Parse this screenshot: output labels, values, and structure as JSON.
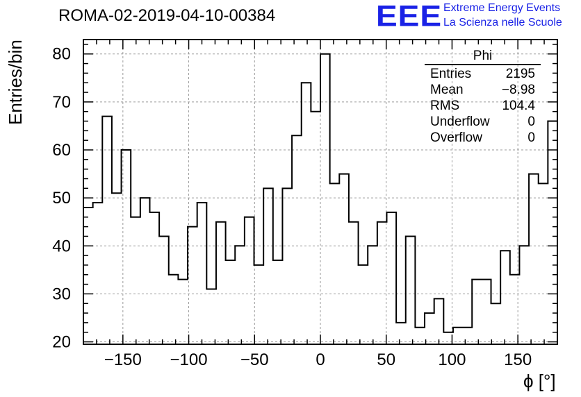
{
  "header": {
    "run_title": "ROMA-02-2019-04-10-00384",
    "logo_text": "EEE",
    "logo_line1": "Extreme Energy Events",
    "logo_line2": "La Scienza nelle Scuole"
  },
  "stats": {
    "title": "Phi",
    "rows": [
      {
        "label": "Entries",
        "value": "2195"
      },
      {
        "label": "Mean",
        "value": "−8.98"
      },
      {
        "label": "RMS",
        "value": "104.4"
      },
      {
        "label": "Underflow",
        "value": "0"
      },
      {
        "label": "Overflow",
        "value": "0"
      }
    ]
  },
  "chart_data": {
    "type": "bar",
    "style": "step-histogram",
    "xlabel": "ϕ [°]",
    "ylabel": "Entries/bin",
    "xlim": [
      -180,
      180
    ],
    "ylim": [
      19.5,
      83
    ],
    "bin_width": 7.2,
    "bin_low_edges": [
      -180,
      -172.8,
      -165.6,
      -158.4,
      -151.2,
      -144,
      -136.8,
      -129.6,
      -122.4,
      -115.2,
      -108,
      -100.8,
      -93.6,
      -86.4,
      -79.2,
      -72,
      -64.8,
      -57.6,
      -50.4,
      -43.2,
      -36,
      -28.8,
      -21.6,
      -14.4,
      -7.2,
      0,
      7.2,
      14.4,
      21.6,
      28.8,
      36,
      43.2,
      50.4,
      57.6,
      64.8,
      72,
      79.2,
      86.4,
      93.6,
      100.8,
      108,
      115.2,
      122.4,
      129.6,
      136.8,
      144,
      151.2,
      158.4,
      165.6,
      172.8
    ],
    "values": [
      48,
      49,
      67,
      51,
      60,
      46,
      50,
      47,
      42,
      34,
      33,
      44,
      49,
      31,
      45,
      37,
      40,
      46,
      36,
      52,
      37,
      52,
      63,
      74,
      68,
      80,
      53,
      55,
      45,
      36,
      40,
      45,
      47,
      24,
      42,
      23,
      26,
      29,
      22,
      23,
      23,
      33,
      33,
      28,
      39,
      34,
      40,
      55,
      53,
      66
    ],
    "x_ticks": [
      -150,
      -100,
      -50,
      0,
      50,
      100,
      150
    ],
    "x_tick_labels": [
      "−150",
      "−100",
      "−50",
      "0",
      "50",
      "100",
      "150"
    ],
    "y_ticks": [
      20,
      30,
      40,
      50,
      60,
      70,
      80
    ],
    "y_tick_labels": [
      "20",
      "30",
      "40",
      "50",
      "60",
      "70",
      "80"
    ],
    "grid": true,
    "colors": {
      "line": "#000000",
      "grid": "#9a9a9a",
      "logo": "#1a22e6"
    }
  }
}
